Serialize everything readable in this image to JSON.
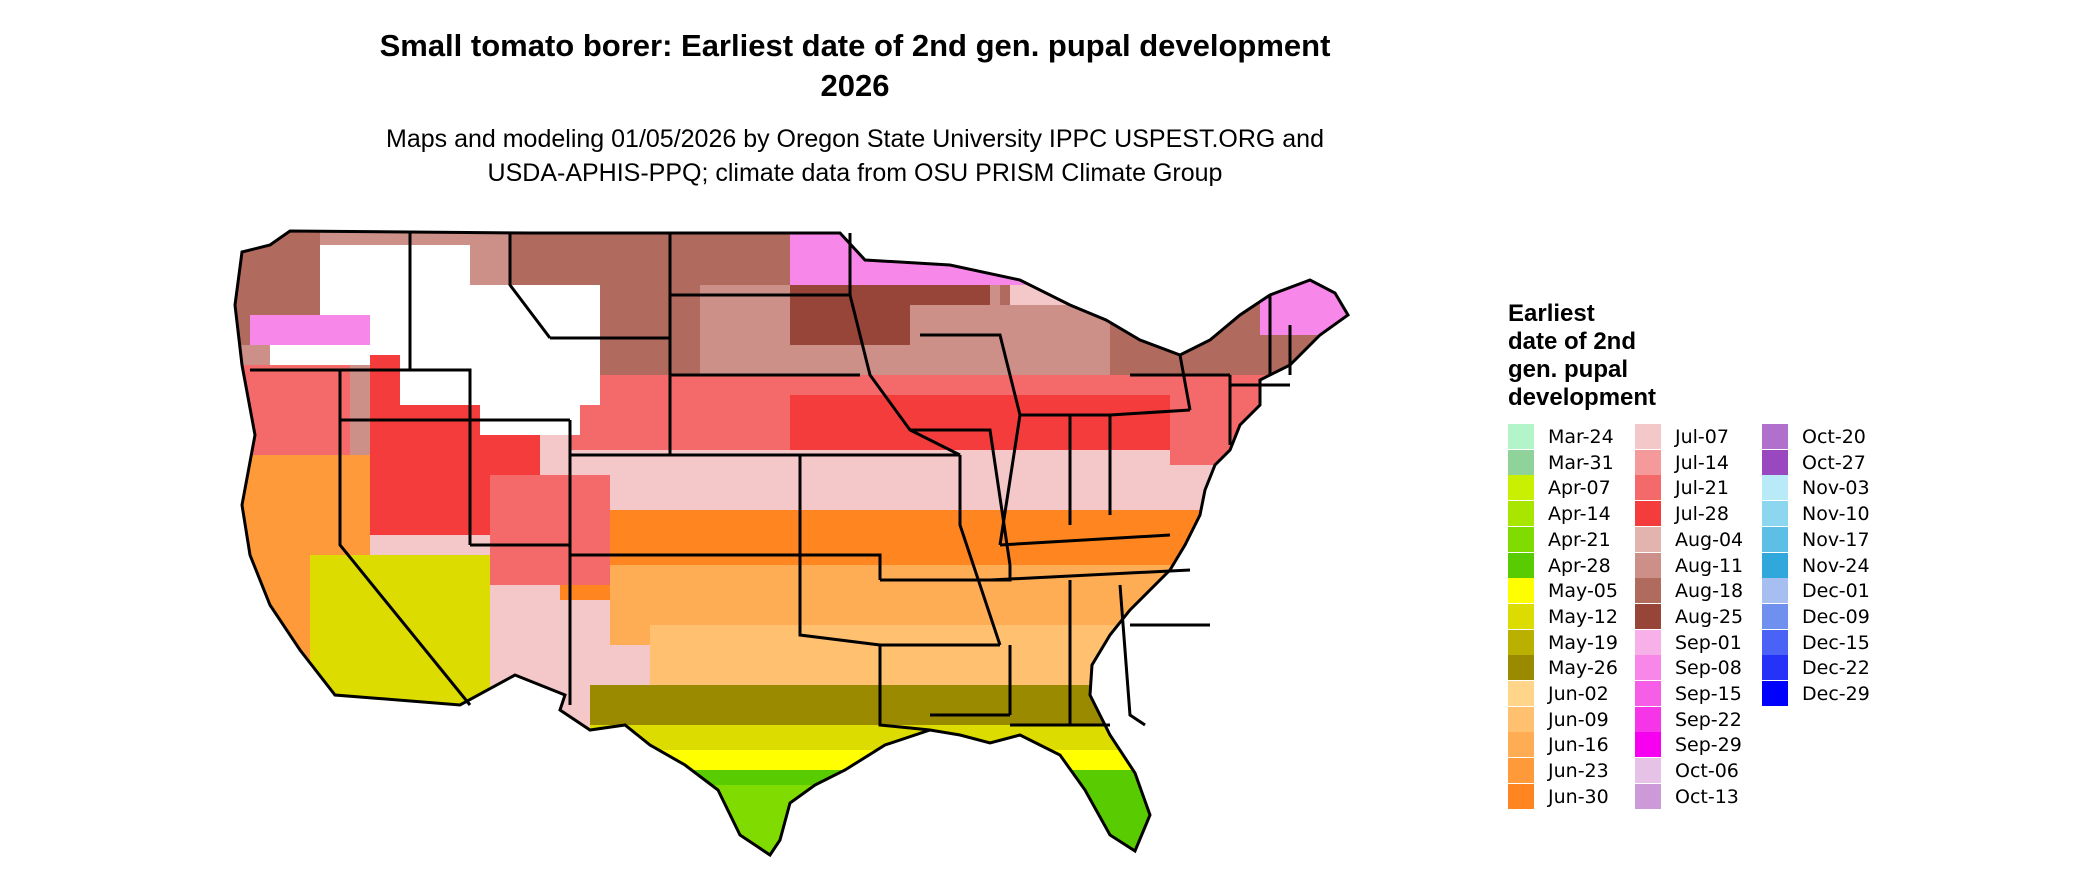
{
  "title": {
    "line1": "Small tomato borer: Earliest date of 2nd gen. pupal development",
    "line2": "2026"
  },
  "subtitle": {
    "line1": "Maps and modeling 01/05/2026 by Oregon State University IPPC USPEST.ORG and",
    "line2": "USDA-APHIS-PPQ; climate data from OSU PRISM Climate Group"
  },
  "legend": {
    "title_lines": [
      "Earliest",
      "date of 2nd",
      "gen. pupal",
      "development"
    ],
    "items": [
      {
        "label": "Mar-24",
        "color": "#b3f5c8"
      },
      {
        "label": "Mar-31",
        "color": "#8fd39b"
      },
      {
        "label": "Apr-07",
        "color": "#c8f000"
      },
      {
        "label": "Apr-14",
        "color": "#a8e600"
      },
      {
        "label": "Apr-21",
        "color": "#80dc00"
      },
      {
        "label": "Apr-28",
        "color": "#58cc00"
      },
      {
        "label": "May-05",
        "color": "#ffff00"
      },
      {
        "label": "May-12",
        "color": "#dcdc00"
      },
      {
        "label": "May-19",
        "color": "#b9b000"
      },
      {
        "label": "May-26",
        "color": "#9a8a00"
      },
      {
        "label": "Jun-02",
        "color": "#ffd58a"
      },
      {
        "label": "Jun-09",
        "color": "#ffc070"
      },
      {
        "label": "Jun-16",
        "color": "#ffad55"
      },
      {
        "label": "Jun-23",
        "color": "#ff9a3a"
      },
      {
        "label": "Jun-30",
        "color": "#ff8520"
      },
      {
        "label": "Jul-07",
        "color": "#f4c8c8"
      },
      {
        "label": "Jul-14",
        "color": "#f49a9a"
      },
      {
        "label": "Jul-21",
        "color": "#f46a6a"
      },
      {
        "label": "Jul-28",
        "color": "#f43c3c"
      },
      {
        "label": "Aug-04",
        "color": "#e3b3ad"
      },
      {
        "label": "Aug-11",
        "color": "#cc9088"
      },
      {
        "label": "Aug-18",
        "color": "#b06a5e"
      },
      {
        "label": "Aug-25",
        "color": "#964538"
      },
      {
        "label": "Sep-01",
        "color": "#f7b0e8"
      },
      {
        "label": "Sep-08",
        "color": "#f787e8"
      },
      {
        "label": "Sep-15",
        "color": "#f75ee8"
      },
      {
        "label": "Sep-22",
        "color": "#f735e8"
      },
      {
        "label": "Sep-29",
        "color": "#f700f2"
      },
      {
        "label": "Oct-06",
        "color": "#e6c3e6"
      },
      {
        "label": "Oct-13",
        "color": "#cc9ad8"
      },
      {
        "label": "Oct-20",
        "color": "#b070cc"
      },
      {
        "label": "Oct-27",
        "color": "#9a48c0"
      },
      {
        "label": "Nov-03",
        "color": "#b8eaf8"
      },
      {
        "label": "Nov-10",
        "color": "#8cd6f0"
      },
      {
        "label": "Nov-17",
        "color": "#5ebfe6"
      },
      {
        "label": "Nov-24",
        "color": "#30a8dc"
      },
      {
        "label": "Dec-01",
        "color": "#a6bff0"
      },
      {
        "label": "Dec-09",
        "color": "#7090f0"
      },
      {
        "label": "Dec-15",
        "color": "#4a62f5"
      },
      {
        "label": "Dec-22",
        "color": "#2533f8"
      },
      {
        "label": "Dec-29",
        "color": "#0000ff"
      }
    ]
  },
  "map": {
    "region": "conterminous-united-states",
    "no_development_color": "#ffffff",
    "outline_color": "#000000"
  }
}
